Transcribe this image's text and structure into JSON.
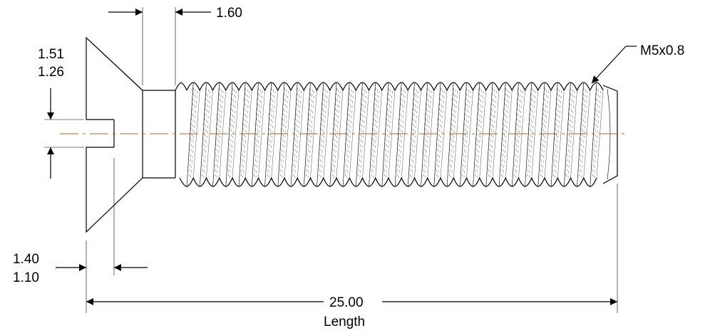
{
  "dimensions": {
    "head_height_a": "1.51",
    "head_height_b": "1.26",
    "slot_depth": "1.60",
    "slot_width_a": "1.40",
    "slot_width_b": "1.10",
    "length_value": "25.00",
    "length_label": "Length",
    "thread_spec": "M5x0.8"
  },
  "colors": {
    "line": "#000000",
    "centerline": "#b5651d",
    "background": "#ffffff"
  }
}
